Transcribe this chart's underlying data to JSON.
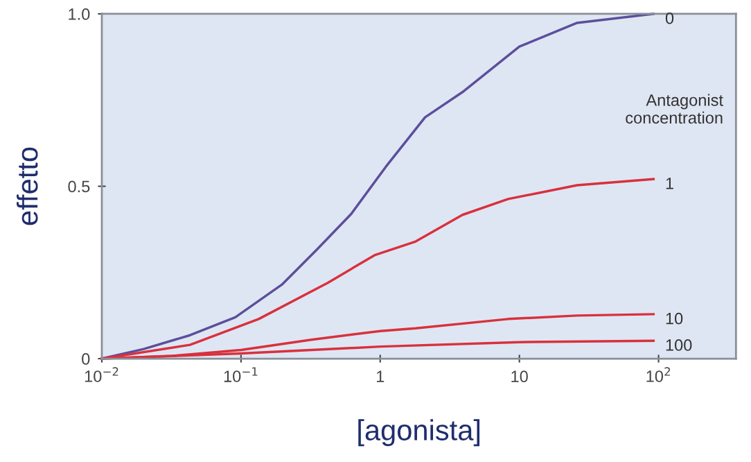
{
  "chart_data": {
    "type": "line",
    "xlabel": "[agonista]",
    "ylabel": "effetto",
    "log": "x",
    "xlim": [
      0.01,
      360
    ],
    "xticks": [
      {
        "value": 0.01,
        "label": "10$^{−2}$"
      },
      {
        "value": 0.1,
        "label": "10$^{−1}$"
      },
      1,
      10,
      {
        "value": 100,
        "label": "10$^{2}$"
      }
    ],
    "ylim": [
      0,
      1.0
    ],
    "yticks": [
      0,
      0.5,
      {
        "value": 1.0,
        "label": "1.0"
      }
    ],
    "grid": false,
    "legend": false,
    "marker": "none",
    "line_style": "solid",
    "annotations": [
      "Antagonist\nconcentration"
    ],
    "series": [
      {
        "name": "0",
        "color": "#5b4f9c",
        "x": [
          0.01,
          0.02,
          0.043,
          0.091,
          0.197,
          0.35,
          0.62,
          1.1,
          2.1,
          3.9,
          10,
          26,
          92
        ],
        "values": [
          0,
          0.028,
          0.068,
          0.12,
          0.215,
          0.316,
          0.42,
          0.557,
          0.7,
          0.773,
          0.905,
          0.974,
          1.0
        ]
      },
      {
        "name": "1",
        "color": "#d8313d",
        "x": [
          0.01,
          0.043,
          0.134,
          0.42,
          0.91,
          1.8,
          3.9,
          8.3,
          26,
          92
        ],
        "values": [
          0,
          0.04,
          0.115,
          0.22,
          0.3,
          0.34,
          0.417,
          0.463,
          0.503,
          0.521
        ]
      },
      {
        "name": "10",
        "color": "#d8313d",
        "x": [
          0.01,
          0.032,
          0.1,
          0.32,
          1,
          1.8,
          8.3,
          26,
          92
        ],
        "values": [
          0,
          0.008,
          0.025,
          0.055,
          0.08,
          0.088,
          0.115,
          0.125,
          0.129
        ]
      },
      {
        "name": "100",
        "color": "#d8313d",
        "x": [
          0.01,
          0.1,
          1,
          10,
          92
        ],
        "values": [
          0,
          0.015,
          0.035,
          0.048,
          0.052
        ]
      }
    ]
  }
}
